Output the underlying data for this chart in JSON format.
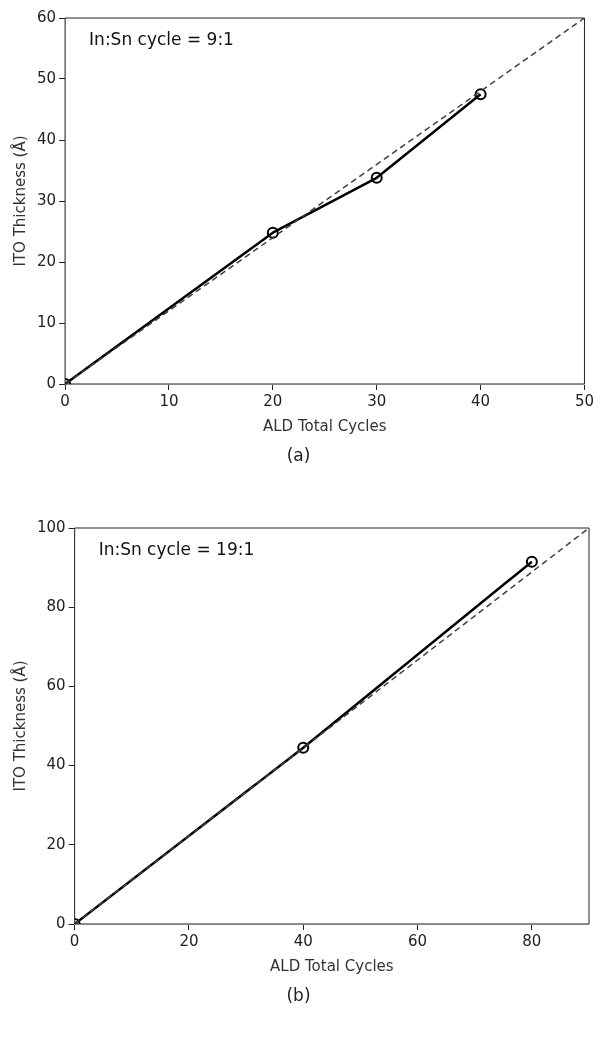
{
  "chart_data": [
    {
      "type": "line",
      "xlabel": "ALD Total Cycles",
      "ylabel": "ITO Thickness (Å)",
      "xlim": [
        0,
        50
      ],
      "xticks": [
        0,
        10,
        20,
        30,
        40,
        50
      ],
      "ylim": [
        0,
        60
      ],
      "yticks": [
        0,
        10,
        20,
        30,
        40,
        50,
        60
      ],
      "grid": false,
      "legend": false,
      "series": [
        {
          "x": [
            0,
            50
          ],
          "values": [
            0,
            60
          ],
          "color": "#404040",
          "marker": "none",
          "line_style": "dashed"
        },
        {
          "x": [
            0,
            20,
            30,
            40
          ],
          "values": [
            0,
            24.8,
            33.8,
            47.5
          ],
          "color": "#000000",
          "marker": "circle",
          "line_style": "solid"
        }
      ],
      "annotations": [
        "In:Sn cycle = 9:1",
        "(a)"
      ]
    },
    {
      "type": "line",
      "xlabel": "ALD Total Cycles",
      "ylabel": "ITO Thickness (Å)",
      "xlim": [
        0,
        90
      ],
      "xticks": [
        0,
        20,
        40,
        60,
        80
      ],
      "ylim": [
        0,
        100
      ],
      "yticks": [
        0,
        20,
        40,
        60,
        80,
        100
      ],
      "grid": false,
      "legend": false,
      "series": [
        {
          "x": [
            0,
            90
          ],
          "values": [
            0,
            100
          ],
          "color": "#404040",
          "marker": "none",
          "line_style": "dashed"
        },
        {
          "x": [
            0,
            40,
            80
          ],
          "values": [
            0,
            44.5,
            91.5
          ],
          "color": "#000000",
          "marker": "circle",
          "line_style": "solid"
        }
      ],
      "annotations": [
        "In:Sn cycle = 19:1",
        "(b)"
      ]
    }
  ]
}
